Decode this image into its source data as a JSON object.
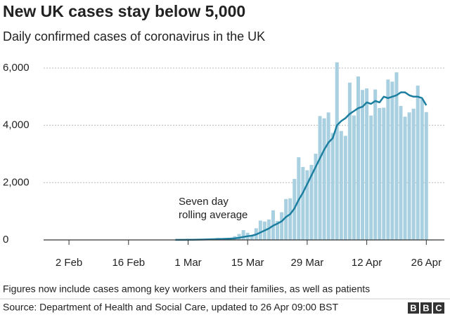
{
  "chart_data": {
    "type": "bar",
    "title": "New UK cases stay below 5,000",
    "subtitle": "Daily confirmed cases of coronavirus in the UK",
    "note": "Figures now include cases among key workers and their families, as well as patients",
    "source": "Source: Department of Health and Social Care, updated to 26 Apr 09:00 BST",
    "logo": [
      "B",
      "B",
      "C"
    ],
    "annotation": [
      "Seven day",
      "rolling average"
    ],
    "categories": [
      "31 Jan",
      "1 Feb",
      "2 Feb",
      "3 Feb",
      "4 Feb",
      "5 Feb",
      "6 Feb",
      "7 Feb",
      "8 Feb",
      "9 Feb",
      "10 Feb",
      "11 Feb",
      "12 Feb",
      "13 Feb",
      "14 Feb",
      "15 Feb",
      "16 Feb",
      "17 Feb",
      "18 Feb",
      "19 Feb",
      "20 Feb",
      "21 Feb",
      "22 Feb",
      "23 Feb",
      "24 Feb",
      "25 Feb",
      "26 Feb",
      "27 Feb",
      "28 Feb",
      "29 Feb",
      "1 Mar",
      "2 Mar",
      "3 Mar",
      "4 Mar",
      "5 Mar",
      "6 Mar",
      "7 Mar",
      "8 Mar",
      "9 Mar",
      "10 Mar",
      "11 Mar",
      "12 Mar",
      "13 Mar",
      "14 Mar",
      "15 Mar",
      "16 Mar",
      "17 Mar",
      "18 Mar",
      "19 Mar",
      "20 Mar",
      "21 Mar",
      "22 Mar",
      "23 Mar",
      "24 Mar",
      "25 Mar",
      "26 Mar",
      "27 Mar",
      "28 Mar",
      "29 Mar",
      "30 Mar",
      "31 Mar",
      "1 Apr",
      "2 Apr",
      "3 Apr",
      "4 Apr",
      "5 Apr",
      "6 Apr",
      "7 Apr",
      "8 Apr",
      "9 Apr",
      "10 Apr",
      "11 Apr",
      "12 Apr",
      "13 Apr",
      "14 Apr",
      "15 Apr",
      "16 Apr",
      "17 Apr",
      "18 Apr",
      "19 Apr",
      "20 Apr",
      "21 Apr",
      "22 Apr",
      "23 Apr",
      "24 Apr",
      "25 Apr",
      "26 Apr"
    ],
    "series": [
      {
        "type": "bar",
        "color": "#a9d0e0",
        "values": [
          2,
          0,
          0,
          0,
          0,
          0,
          0,
          0,
          0,
          1,
          4,
          0,
          1,
          0,
          0,
          0,
          0,
          0,
          0,
          0,
          0,
          0,
          0,
          0,
          0,
          4,
          0,
          0,
          4,
          3,
          13,
          4,
          11,
          34,
          29,
          48,
          45,
          69,
          43,
          62,
          77,
          130,
          208,
          342,
          251,
          152,
          407,
          676,
          643,
          714,
          1035,
          665,
          967,
          1427,
          1452,
          2129,
          2885,
          2546,
          2433,
          2619,
          3009,
          4324,
          4244,
          4450,
          3735,
          6199,
          3802,
          3634,
          5491,
          4344,
          5706,
          5234,
          5288,
          4342,
          5252,
          4603,
          4617,
          5599,
          5525,
          5850,
          4676,
          4301,
          4451,
          4583,
          5386,
          4913,
          4463
        ]
      },
      {
        "type": "line",
        "color": "#1d7fa0",
        "values": [
          null,
          null,
          null,
          null,
          null,
          null,
          null,
          null,
          null,
          null,
          null,
          null,
          null,
          null,
          null,
          null,
          null,
          null,
          null,
          null,
          null,
          null,
          null,
          null,
          null,
          null,
          null,
          2,
          3,
          4,
          6,
          7,
          8,
          12,
          15,
          20,
          25,
          30,
          35,
          40,
          45,
          55,
          75,
          105,
          130,
          150,
          190,
          260,
          330,
          400,
          500,
          570,
          650,
          800,
          900,
          1100,
          1400,
          1650,
          1950,
          2250,
          2550,
          2850,
          3150,
          3400,
          3550,
          4000,
          4150,
          4250,
          4400,
          4500,
          4600,
          4650,
          4800,
          4750,
          4850,
          4800,
          5000,
          4950,
          5000,
          5050,
          5150,
          5150,
          5050,
          5000,
          5000,
          4950,
          4700
        ]
      }
    ],
    "xticks": [
      "2 Feb",
      "16 Feb",
      "1 Mar",
      "15 Mar",
      "29 Mar",
      "12 Apr",
      "26 Apr"
    ],
    "ylim": [
      0,
      6200
    ],
    "yticks": [
      0,
      {
        "value": 2000,
        "label": "2,000"
      },
      {
        "value": 4000,
        "label": "4,000"
      },
      {
        "value": 6000,
        "label": "6,000"
      }
    ],
    "grid": true
  }
}
